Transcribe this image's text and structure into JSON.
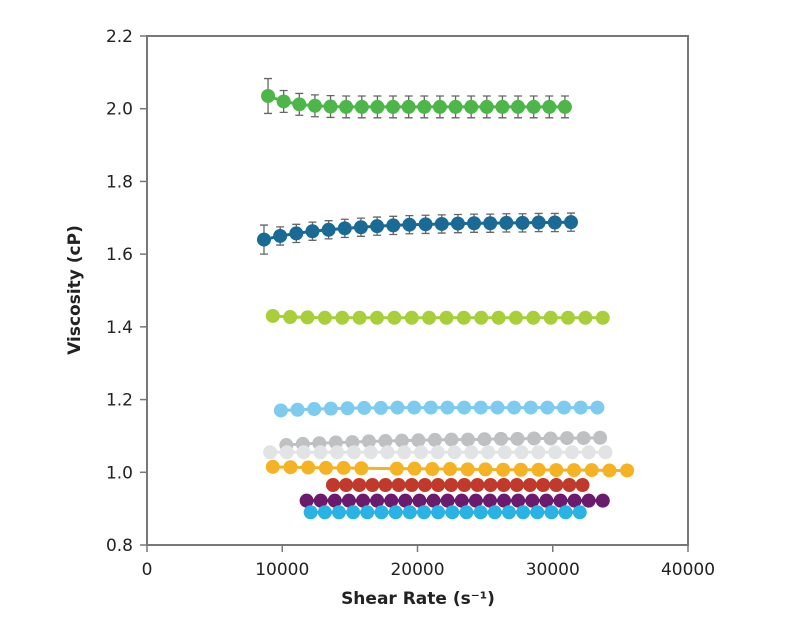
{
  "chart_data": {
    "type": "scatter",
    "title": "",
    "xlabel": "Shear Rate (s⁻¹)",
    "ylabel": "Viscosity (cP)",
    "xlim": [
      0,
      40000
    ],
    "ylim": [
      0.8,
      2.2
    ],
    "xticks": [
      0,
      10000,
      20000,
      30000,
      40000
    ],
    "xtick_labels": [
      "0",
      "10000",
      "20000",
      "30000",
      "40000"
    ],
    "yticks": [
      0.8,
      1.0,
      1.2,
      1.4,
      1.6,
      1.8,
      2.0,
      2.2
    ],
    "ytick_labels": [
      "0.8",
      "1.0",
      "1.2",
      "1.4",
      "1.6",
      "1.8",
      "2.0",
      "2.2"
    ],
    "grid": false,
    "series": [
      {
        "name": "green",
        "color": "#4cb748",
        "x_start": 8950,
        "x_end": 30900,
        "error": 0.03,
        "y": [
          2.035,
          2.02,
          2.012,
          2.008,
          2.006,
          2.005,
          2.005,
          2.005,
          2.005,
          2.005,
          2.005,
          2.005,
          2.005,
          2.005,
          2.005,
          2.005,
          2.005,
          2.005,
          2.005,
          2.005
        ]
      },
      {
        "name": "dark blue",
        "color": "#1a6a96",
        "x_start": 8650,
        "x_end": 31350,
        "error": 0.025,
        "y": [
          1.64,
          1.65,
          1.657,
          1.663,
          1.667,
          1.671,
          1.674,
          1.677,
          1.679,
          1.681,
          1.682,
          1.683,
          1.684,
          1.685,
          1.685,
          1.686,
          1.686,
          1.687,
          1.687,
          1.688
        ]
      },
      {
        "name": "lime",
        "color": "#a8cf3a",
        "x_start": 9300,
        "x_end": 33700,
        "y": [
          1.43,
          1.427,
          1.426,
          1.425,
          1.425,
          1.425,
          1.425,
          1.425,
          1.425,
          1.425,
          1.425,
          1.425,
          1.425,
          1.425,
          1.425,
          1.425,
          1.425,
          1.425,
          1.425,
          1.425
        ]
      },
      {
        "name": "light blue",
        "color": "#7dcbef",
        "x_start": 9900,
        "x_end": 33300,
        "y": [
          1.17,
          1.172,
          1.174,
          1.175,
          1.176,
          1.177,
          1.177,
          1.178,
          1.178,
          1.178,
          1.178,
          1.178,
          1.178,
          1.178,
          1.178,
          1.178,
          1.178,
          1.178,
          1.178,
          1.178
        ]
      },
      {
        "name": "gray",
        "color": "#bfc0c2",
        "x_start": 10300,
        "x_end": 33500,
        "y": [
          1.075,
          1.078,
          1.08,
          1.082,
          1.083,
          1.085,
          1.086,
          1.087,
          1.088,
          1.089,
          1.09,
          1.09,
          1.091,
          1.092,
          1.092,
          1.093,
          1.093,
          1.094,
          1.094,
          1.095
        ]
      },
      {
        "name": "light gray",
        "color": "#e2e3e4",
        "x_start": 9100,
        "x_end": 33900,
        "y": [
          1.055,
          1.055,
          1.055,
          1.055,
          1.055,
          1.055,
          1.055,
          1.055,
          1.055,
          1.055,
          1.055,
          1.055,
          1.055,
          1.055,
          1.055,
          1.055,
          1.055,
          1.055,
          1.055,
          1.055,
          1.055
        ]
      },
      {
        "name": "orange",
        "color": "#f5b324",
        "x_start": 9300,
        "x_end": 35500,
        "y": [
          1.015,
          1.014,
          1.013,
          1.012,
          1.012,
          1.011,
          null,
          1.01,
          1.01,
          1.009,
          1.009,
          1.008,
          1.008,
          1.007,
          1.007,
          1.007,
          1.006,
          1.006,
          1.006,
          1.005,
          1.005
        ]
      },
      {
        "name": "red",
        "color": "#c0392b",
        "x_start": 13750,
        "x_end": 32200,
        "y": [
          0.965,
          0.965,
          0.965,
          0.965,
          0.965,
          0.965,
          0.965,
          0.965,
          0.965,
          0.965,
          0.965,
          0.965,
          0.965,
          0.965,
          0.965,
          0.965,
          0.965,
          0.965,
          0.965,
          0.965
        ]
      },
      {
        "name": "purple",
        "color": "#6b1a6e",
        "x_start": 11800,
        "x_end": 33700,
        "y": [
          0.922,
          0.922,
          0.922,
          0.922,
          0.922,
          0.922,
          0.922,
          0.922,
          0.922,
          0.922,
          0.922,
          0.922,
          0.922,
          0.922,
          0.922,
          0.922,
          0.922,
          0.922,
          0.922,
          0.922,
          0.922,
          0.922
        ]
      },
      {
        "name": "cyan",
        "color": "#29b2e4",
        "x_start": 12100,
        "x_end": 32000,
        "y": [
          0.89,
          0.89,
          0.89,
          0.89,
          0.89,
          0.89,
          0.89,
          0.89,
          0.89,
          0.89,
          0.89,
          0.89,
          0.89,
          0.89,
          0.89,
          0.89,
          0.89,
          0.89,
          0.89,
          0.89
        ]
      }
    ]
  }
}
